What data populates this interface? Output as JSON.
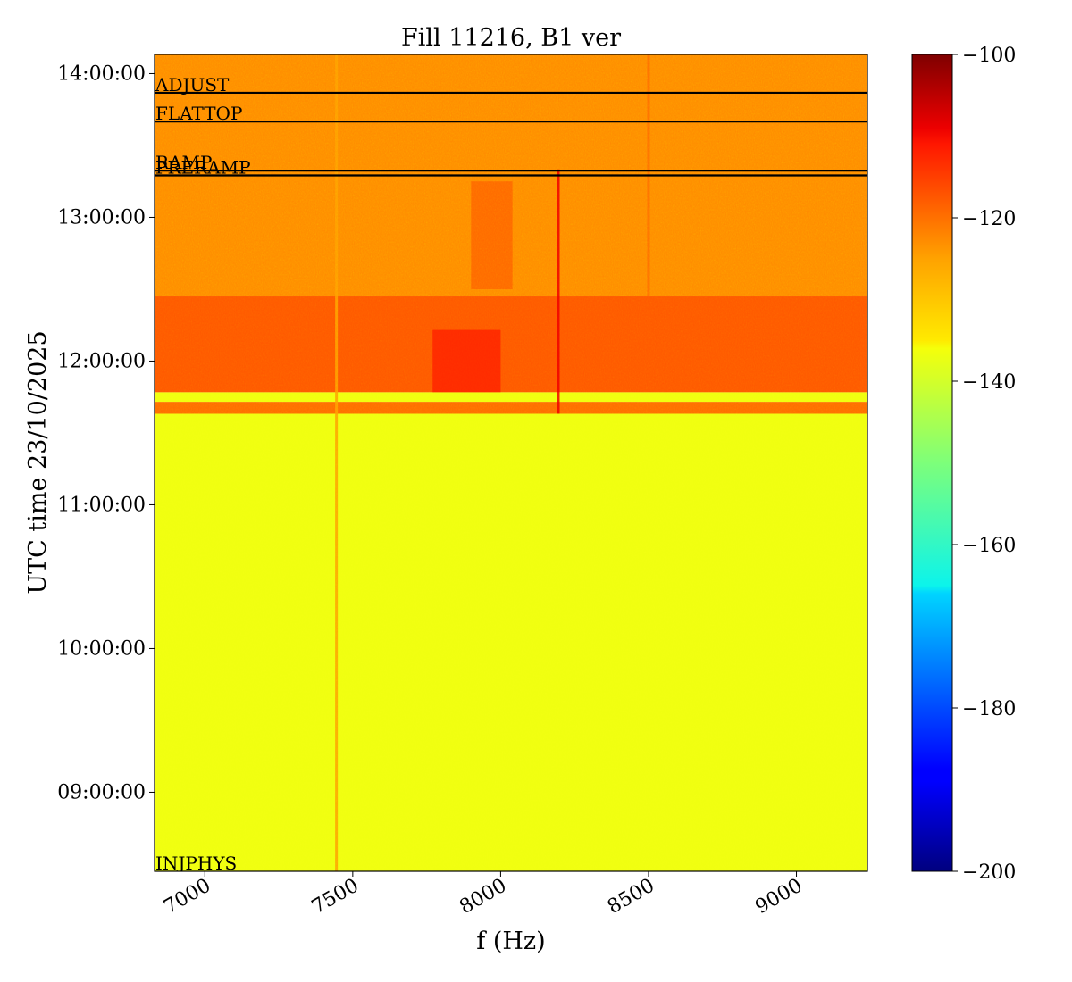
{
  "chart_data": {
    "type": "heatmap",
    "title": "Fill 11216, B1 ver",
    "xlabel": "f (Hz)",
    "ylabel": "UTC time 23/10/2025",
    "x_range": [
      6830,
      9240
    ],
    "y_range": [
      "08:27:00",
      "14:08:00"
    ],
    "x_ticks": [
      7000,
      7500,
      8000,
      8500,
      9000
    ],
    "y_ticks": [
      "09:00:00",
      "10:00:00",
      "11:00:00",
      "12:00:00",
      "13:00:00",
      "14:00:00"
    ],
    "colorbar": {
      "colormap": "jet",
      "range": [
        -200,
        -100
      ],
      "ticks": [
        -100,
        -120,
        -140,
        -160,
        -180,
        -200
      ],
      "tick_labels": [
        "−100",
        "−120",
        "−140",
        "−160",
        "−180",
        "−200"
      ]
    },
    "bands": [
      {
        "from": "08:27:00",
        "to": "11:38:00",
        "level": -139
      },
      {
        "from": "11:38:00",
        "to": "11:43:00",
        "level": -123
      },
      {
        "from": "11:43:00",
        "to": "11:47:00",
        "level": -139
      },
      {
        "from": "11:47:00",
        "to": "12:27:00",
        "level": -121
      },
      {
        "from": "12:27:00",
        "to": "14:08:00",
        "level": -126
      }
    ],
    "lines": [
      {
        "f": 7445,
        "from": "08:27:00",
        "to": "14:08:00",
        "level": -128
      },
      {
        "f": 8195,
        "from": "11:38:00",
        "to": "13:20:00",
        "level": -111
      },
      {
        "f": 8500,
        "from": "12:27:00",
        "to": "14:08:00",
        "level": -123
      }
    ],
    "blobs": [
      {
        "f_from": 7770,
        "f_to": 8000,
        "from": "11:47:00",
        "to": "12:13:00",
        "level": -113
      },
      {
        "f_from": 7900,
        "f_to": 8040,
        "from": "12:30:00",
        "to": "13:15:00",
        "level": -120
      }
    ],
    "events": [
      {
        "label": "ADJUST",
        "time": "13:52:00"
      },
      {
        "label": "FLATTOP",
        "time": "13:40:00"
      },
      {
        "label": "RAMP",
        "time": "13:19:30"
      },
      {
        "label": "PRERAMP",
        "time": "13:17:30"
      },
      {
        "label": "INJPHYS",
        "time": "08:27:00"
      }
    ]
  }
}
